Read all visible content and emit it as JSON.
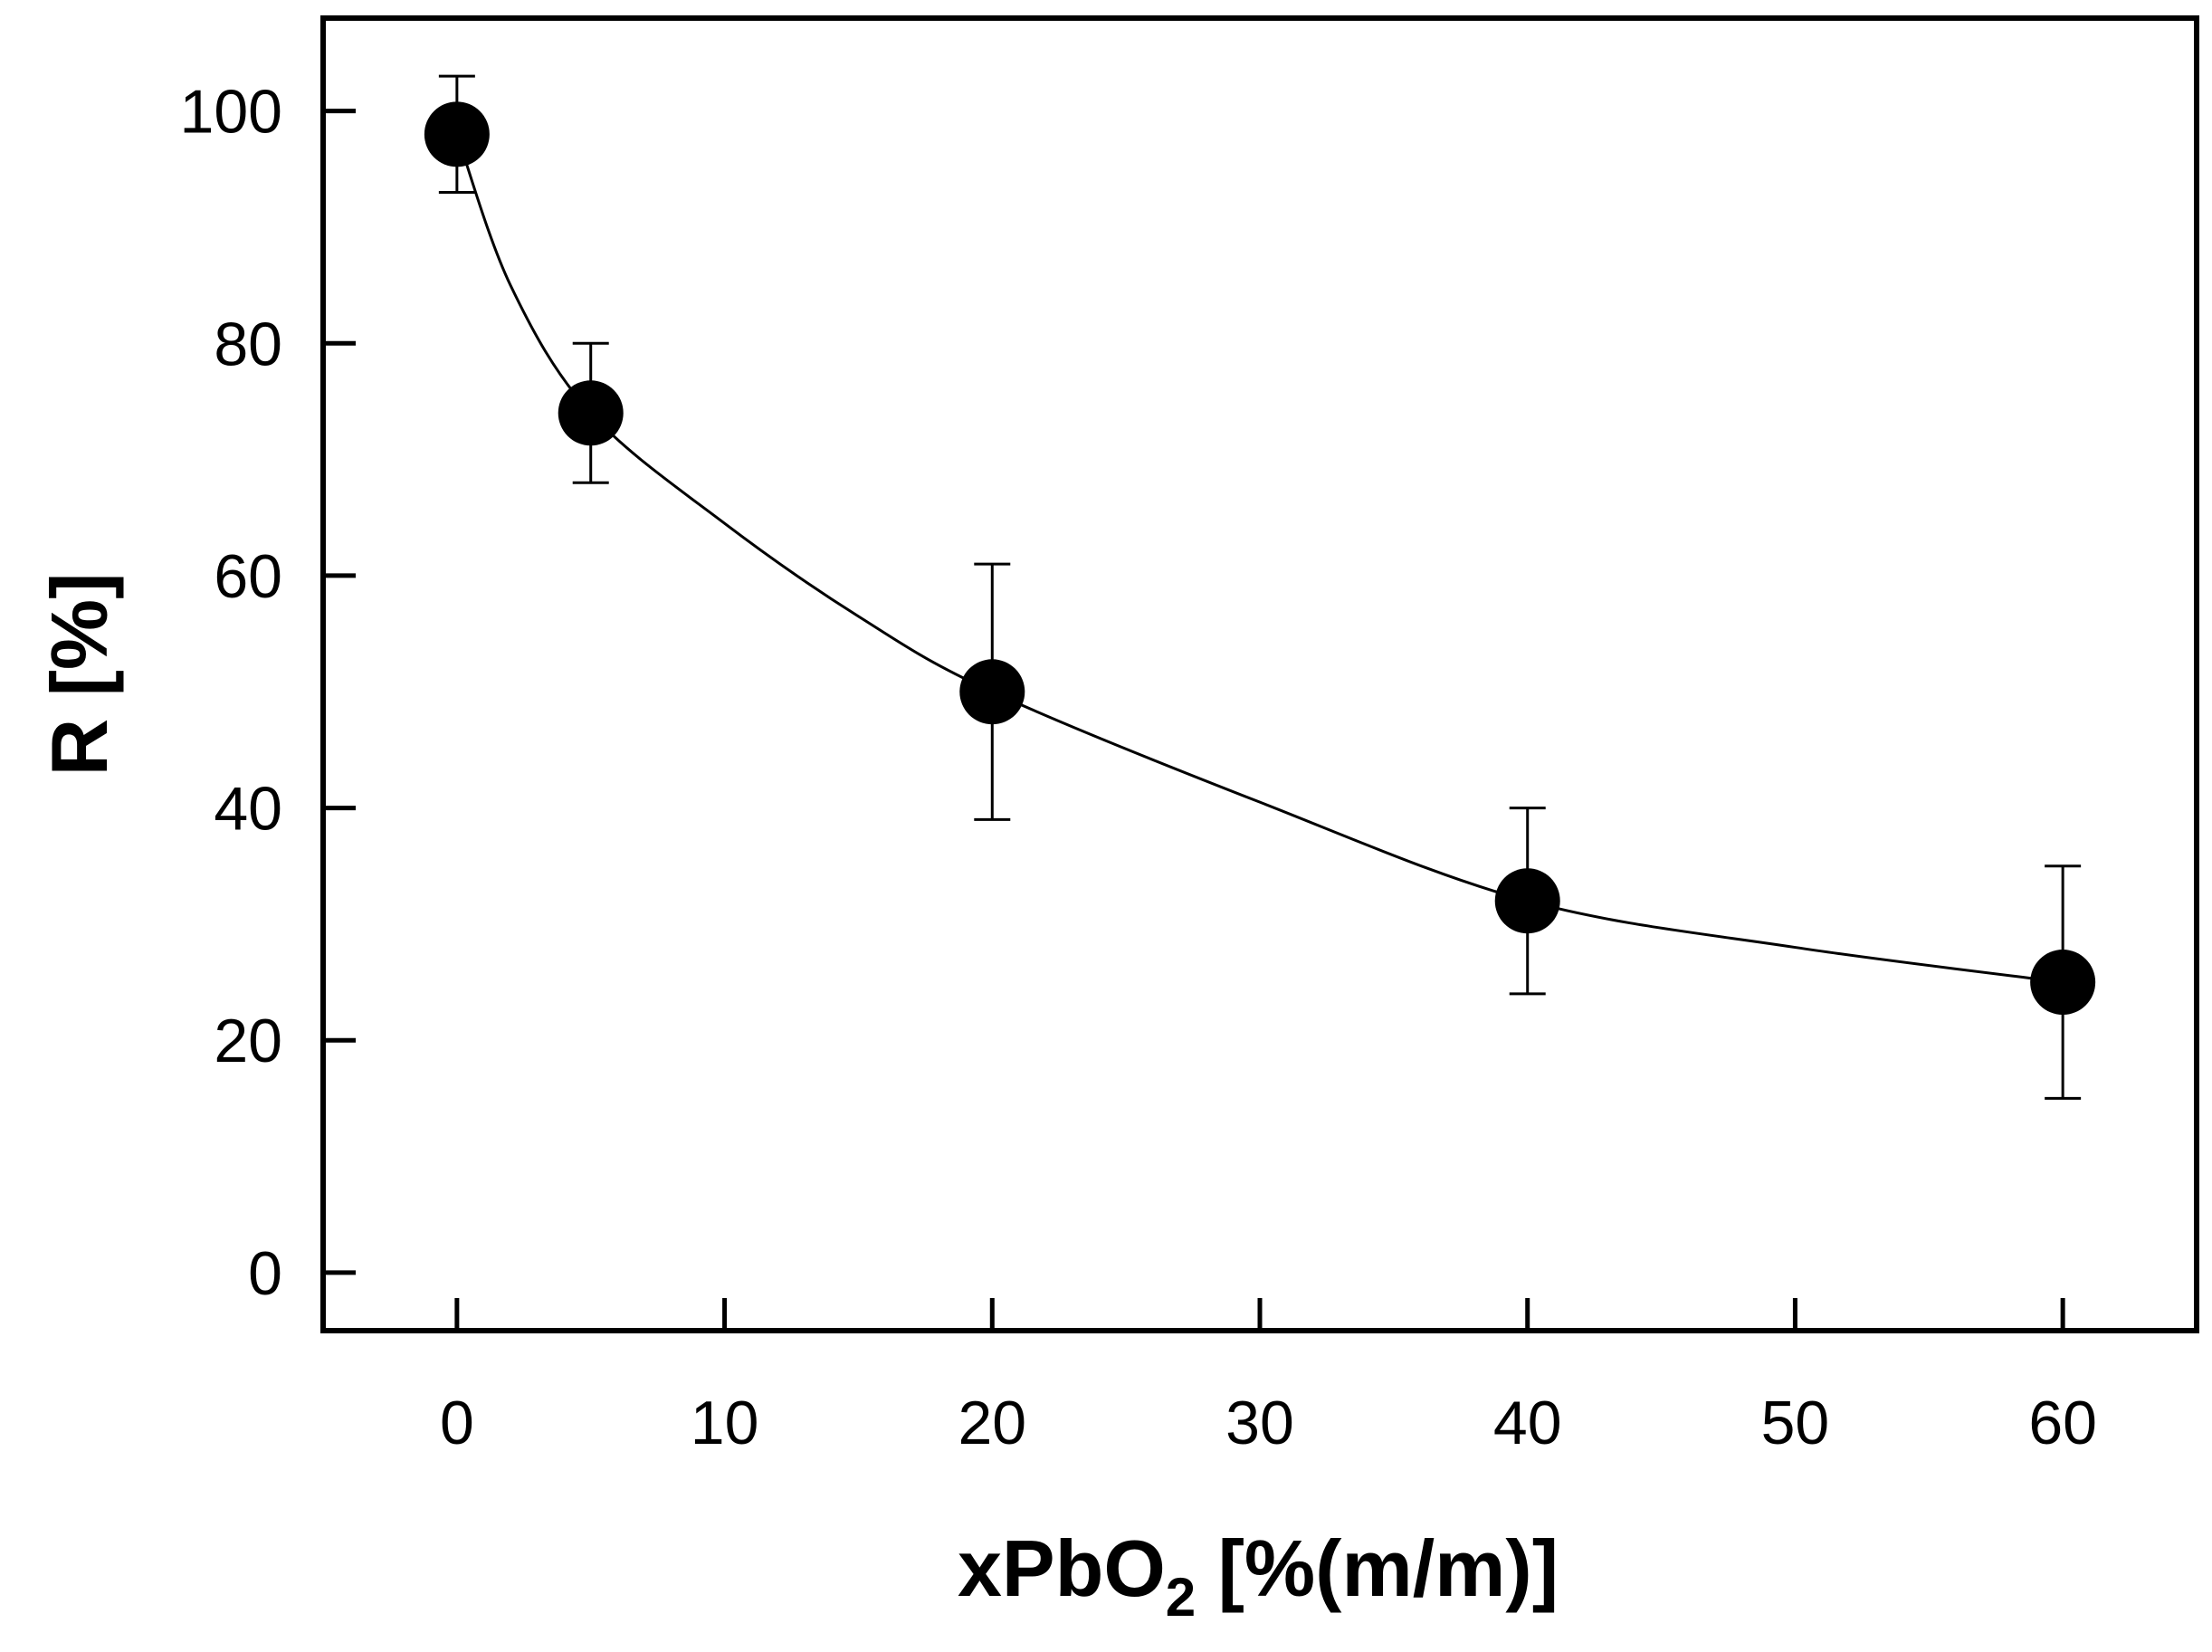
{
  "chart_data": {
    "type": "scatter",
    "title": "",
    "xlabel": {
      "prefix": "xPbO",
      "subscript": "2",
      "suffix": " [%(m/m)]"
    },
    "ylabel": "R [%]",
    "xlim": [
      -5,
      65
    ],
    "ylim": [
      -5,
      108
    ],
    "xticks": [
      0,
      10,
      20,
      30,
      40,
      50,
      60
    ],
    "yticks": [
      0,
      20,
      40,
      60,
      80,
      100
    ],
    "grid": false,
    "legend": "none",
    "series": [
      {
        "name": "R",
        "x": [
          0,
          5,
          20,
          40,
          60
        ],
        "y": [
          98,
          74,
          50,
          32,
          25
        ],
        "error_lower": [
          93,
          68,
          39,
          24,
          15
        ],
        "error_upper": [
          103,
          80,
          61,
          40,
          35
        ]
      }
    ],
    "fit_curve": {
      "x": [
        0,
        2,
        5,
        10,
        15,
        20,
        30,
        40,
        50,
        60
      ],
      "y": [
        98,
        85,
        74,
        64.5,
        56.5,
        50,
        40.5,
        32,
        28,
        25
      ]
    },
    "colors": {
      "marker": "#000000",
      "line": "#000000",
      "background": "#ffffff"
    }
  }
}
